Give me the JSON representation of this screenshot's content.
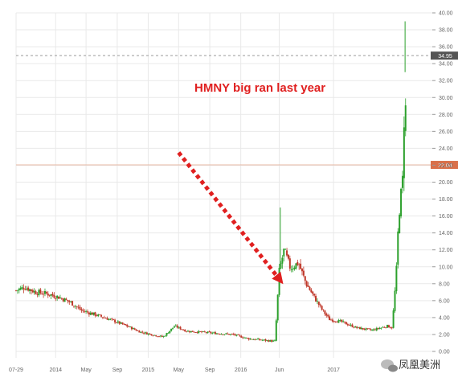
{
  "chart_data": {
    "type": "candlestick",
    "ticker": "HMNY",
    "ylim": [
      0,
      40
    ],
    "ytick_values": [
      0,
      2,
      4,
      6,
      8,
      10,
      12,
      14,
      16,
      18,
      20,
      22,
      24,
      26,
      28,
      30,
      32,
      34,
      36,
      38,
      40
    ],
    "ytick_labels": [
      "0.00",
      "2.00",
      "4.00",
      "6.00",
      "8.00",
      "10.00",
      "12.00",
      "14.00",
      "16.00",
      "18.00",
      "20.00",
      "22.00",
      "24.00",
      "26.00",
      "28.00",
      "30.00",
      "32.00",
      "34.00",
      "36.00",
      "38.00",
      "40.00"
    ],
    "x_range": [
      "2013-07-29",
      "2017-12-31"
    ],
    "xtick_labels": [
      {
        "date": "2013-07-29",
        "label": "07-29"
      },
      {
        "date": "2014-01-01",
        "label": "2014"
      },
      {
        "date": "2014-05-01",
        "label": "May"
      },
      {
        "date": "2014-09-01",
        "label": "Sep"
      },
      {
        "date": "2015-01-01",
        "label": "2015"
      },
      {
        "date": "2015-05-01",
        "label": "May"
      },
      {
        "date": "2015-09-01",
        "label": "Sep"
      },
      {
        "date": "2016-01-01",
        "label": "2016"
      },
      {
        "date": "2016-06-01",
        "label": "Jun"
      },
      {
        "date": "2017-01-01",
        "label": "2017"
      }
    ],
    "close_series": [
      {
        "date": "2013-07-29",
        "value": 7.2
      },
      {
        "date": "2013-09-01",
        "value": 7.6
      },
      {
        "date": "2013-10-15",
        "value": 7.0
      },
      {
        "date": "2013-12-01",
        "value": 6.8
      },
      {
        "date": "2014-01-15",
        "value": 6.4
      },
      {
        "date": "2014-03-01",
        "value": 5.8
      },
      {
        "date": "2014-04-15",
        "value": 4.8
      },
      {
        "date": "2014-06-01",
        "value": 4.4
      },
      {
        "date": "2014-08-01",
        "value": 3.8
      },
      {
        "date": "2014-10-01",
        "value": 3.1
      },
      {
        "date": "2014-12-01",
        "value": 2.3
      },
      {
        "date": "2015-03-01",
        "value": 1.7
      },
      {
        "date": "2015-04-15",
        "value": 3.0
      },
      {
        "date": "2015-06-01",
        "value": 2.4
      },
      {
        "date": "2015-09-01",
        "value": 2.2
      },
      {
        "date": "2015-12-01",
        "value": 2.0
      },
      {
        "date": "2016-02-01",
        "value": 1.5
      },
      {
        "date": "2016-05-15",
        "value": 1.2
      },
      {
        "date": "2016-06-01",
        "value": 9.5
      },
      {
        "date": "2016-06-20",
        "value": 12.0
      },
      {
        "date": "2016-07-15",
        "value": 9.8
      },
      {
        "date": "2016-08-15",
        "value": 10.5
      },
      {
        "date": "2016-09-15",
        "value": 8.0
      },
      {
        "date": "2016-10-15",
        "value": 6.5
      },
      {
        "date": "2016-11-15",
        "value": 5.0
      },
      {
        "date": "2016-12-15",
        "value": 3.8
      },
      {
        "date": "2017-02-01",
        "value": 3.5
      },
      {
        "date": "2017-04-01",
        "value": 2.8
      },
      {
        "date": "2017-06-01",
        "value": 2.5
      },
      {
        "date": "2017-08-01",
        "value": 3.0
      },
      {
        "date": "2017-08-20",
        "value": 2.8
      },
      {
        "date": "2017-09-05",
        "value": 9.0
      },
      {
        "date": "2017-09-15",
        "value": 16.0
      },
      {
        "date": "2017-10-01",
        "value": 20.5
      },
      {
        "date": "2017-10-10",
        "value": 33.0
      },
      {
        "date": "2017-10-15",
        "value": 22.04
      }
    ],
    "spikes": [
      {
        "date": "2016-06-05",
        "high": 17.0
      },
      {
        "date": "2017-10-10",
        "high": 39.0
      }
    ],
    "lines": [
      {
        "value": 34.95,
        "style": "dashed",
        "color": "#9a9a9a",
        "label": "34.95"
      },
      {
        "value": 22.04,
        "style": "solid",
        "color": "#e8b8a4",
        "label": "22.04"
      }
    ],
    "annotation": {
      "text": "HMNY big ran last year",
      "color": "#e02020",
      "arrow_from": {
        "date": "2015-05-01",
        "value": 23.5
      },
      "arrow_to": {
        "date": "2016-05-20",
        "value": 9.0
      }
    },
    "colors": {
      "up": "#2ca02c",
      "down": "#c0392b",
      "grid": "#e9e9e9"
    }
  },
  "watermark": {
    "text": "凤凰美洲"
  }
}
